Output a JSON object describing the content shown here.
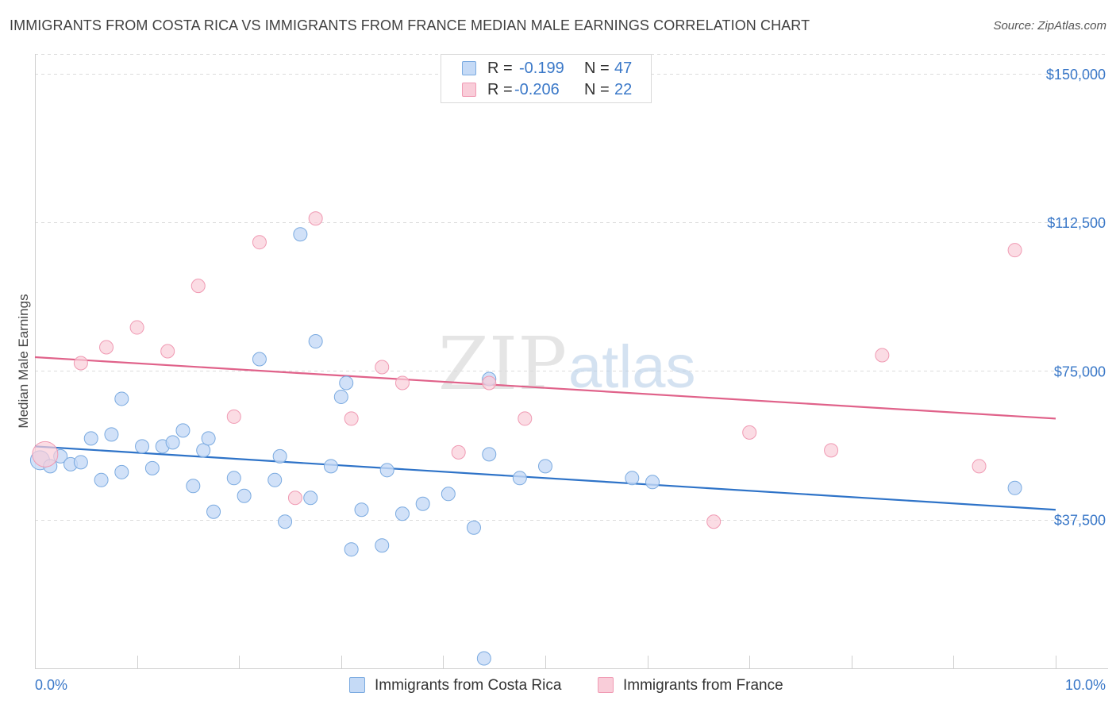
{
  "header": {
    "title": "IMMIGRANTS FROM COSTA RICA VS IMMIGRANTS FROM FRANCE MEDIAN MALE EARNINGS CORRELATION CHART",
    "source": "Source: ZipAtlas.com"
  },
  "watermark": {
    "zip": "ZIP",
    "atlas": "atlas"
  },
  "stats": {
    "r_label": "R =",
    "n_label": "N =",
    "costa_rica": {
      "r": "-0.199",
      "n": "47"
    },
    "france": {
      "r": "-0.206",
      "n": "22"
    }
  },
  "colors": {
    "blue_fill": "#c5daf6",
    "blue_stroke": "#7aaae0",
    "blue_line": "#2e73c8",
    "pink_fill": "#f9cdd9",
    "pink_stroke": "#f09ab3",
    "pink_line": "#e0628a",
    "tick_text": "#3a78c8"
  },
  "chart_data": {
    "type": "scatter",
    "title": "IMMIGRANTS FROM COSTA RICA VS IMMIGRANTS FROM FRANCE MEDIAN MALE EARNINGS CORRELATION CHART",
    "xlabel": "",
    "ylabel": "Median Male Earnings",
    "xlim": [
      0,
      10
    ],
    "ylim": [
      0,
      155000
    ],
    "x_tick_labels": [
      "0.0%",
      "10.0%"
    ],
    "y_ticks": [
      37500,
      75000,
      112500,
      150000
    ],
    "y_tick_labels": [
      "$37,500",
      "$75,000",
      "$112,500",
      "$150,000"
    ],
    "series": [
      {
        "name": "Immigrants from Costa Rica",
        "color": "blue",
        "trend": [
          [
            0,
            56000
          ],
          [
            10,
            40000
          ]
        ],
        "points": [
          [
            0.05,
            52500
          ],
          [
            0.15,
            51000
          ],
          [
            0.25,
            53500
          ],
          [
            0.35,
            51500
          ],
          [
            0.45,
            52000
          ],
          [
            0.55,
            58000
          ],
          [
            0.65,
            47500
          ],
          [
            0.75,
            59000
          ],
          [
            0.85,
            49500
          ],
          [
            0.85,
            68000
          ],
          [
            1.05,
            56000
          ],
          [
            1.15,
            50500
          ],
          [
            1.25,
            56000
          ],
          [
            1.35,
            57000
          ],
          [
            1.45,
            60000
          ],
          [
            1.55,
            46000
          ],
          [
            1.65,
            55000
          ],
          [
            1.75,
            39500
          ],
          [
            1.7,
            58000
          ],
          [
            1.95,
            48000
          ],
          [
            2.05,
            43500
          ],
          [
            2.2,
            78000
          ],
          [
            2.35,
            47500
          ],
          [
            2.4,
            53500
          ],
          [
            2.45,
            37000
          ],
          [
            2.6,
            109500
          ],
          [
            2.7,
            43000
          ],
          [
            2.75,
            82500
          ],
          [
            2.9,
            51000
          ],
          [
            3.0,
            68500
          ],
          [
            3.05,
            72000
          ],
          [
            3.1,
            30000
          ],
          [
            3.2,
            40000
          ],
          [
            3.4,
            31000
          ],
          [
            3.45,
            50000
          ],
          [
            3.6,
            39000
          ],
          [
            3.8,
            41500
          ],
          [
            4.05,
            44000
          ],
          [
            4.3,
            35500
          ],
          [
            4.45,
            54000
          ],
          [
            4.45,
            73000
          ],
          [
            4.75,
            48000
          ],
          [
            5.0,
            51000
          ],
          [
            5.85,
            48000
          ],
          [
            6.05,
            47000
          ],
          [
            9.6,
            45500
          ],
          [
            4.4,
            2500
          ]
        ]
      },
      {
        "name": "Immigrants from France",
        "color": "pink",
        "trend": [
          [
            0,
            78500
          ],
          [
            10,
            63000
          ]
        ],
        "points": [
          [
            0.1,
            54000
          ],
          [
            0.45,
            77000
          ],
          [
            0.7,
            81000
          ],
          [
            1.0,
            86000
          ],
          [
            1.3,
            80000
          ],
          [
            1.6,
            96500
          ],
          [
            1.95,
            63500
          ],
          [
            2.2,
            107500
          ],
          [
            2.55,
            43000
          ],
          [
            2.75,
            113500
          ],
          [
            3.1,
            63000
          ],
          [
            3.4,
            76000
          ],
          [
            3.6,
            72000
          ],
          [
            4.15,
            54500
          ],
          [
            4.45,
            72000
          ],
          [
            4.8,
            63000
          ],
          [
            6.65,
            37000
          ],
          [
            7.0,
            59500
          ],
          [
            7.8,
            55000
          ],
          [
            8.3,
            79000
          ],
          [
            9.25,
            51000
          ],
          [
            9.6,
            105500
          ]
        ]
      }
    ]
  },
  "legend": {
    "costa_rica": "Immigrants from Costa Rica",
    "france": "Immigrants from France"
  }
}
